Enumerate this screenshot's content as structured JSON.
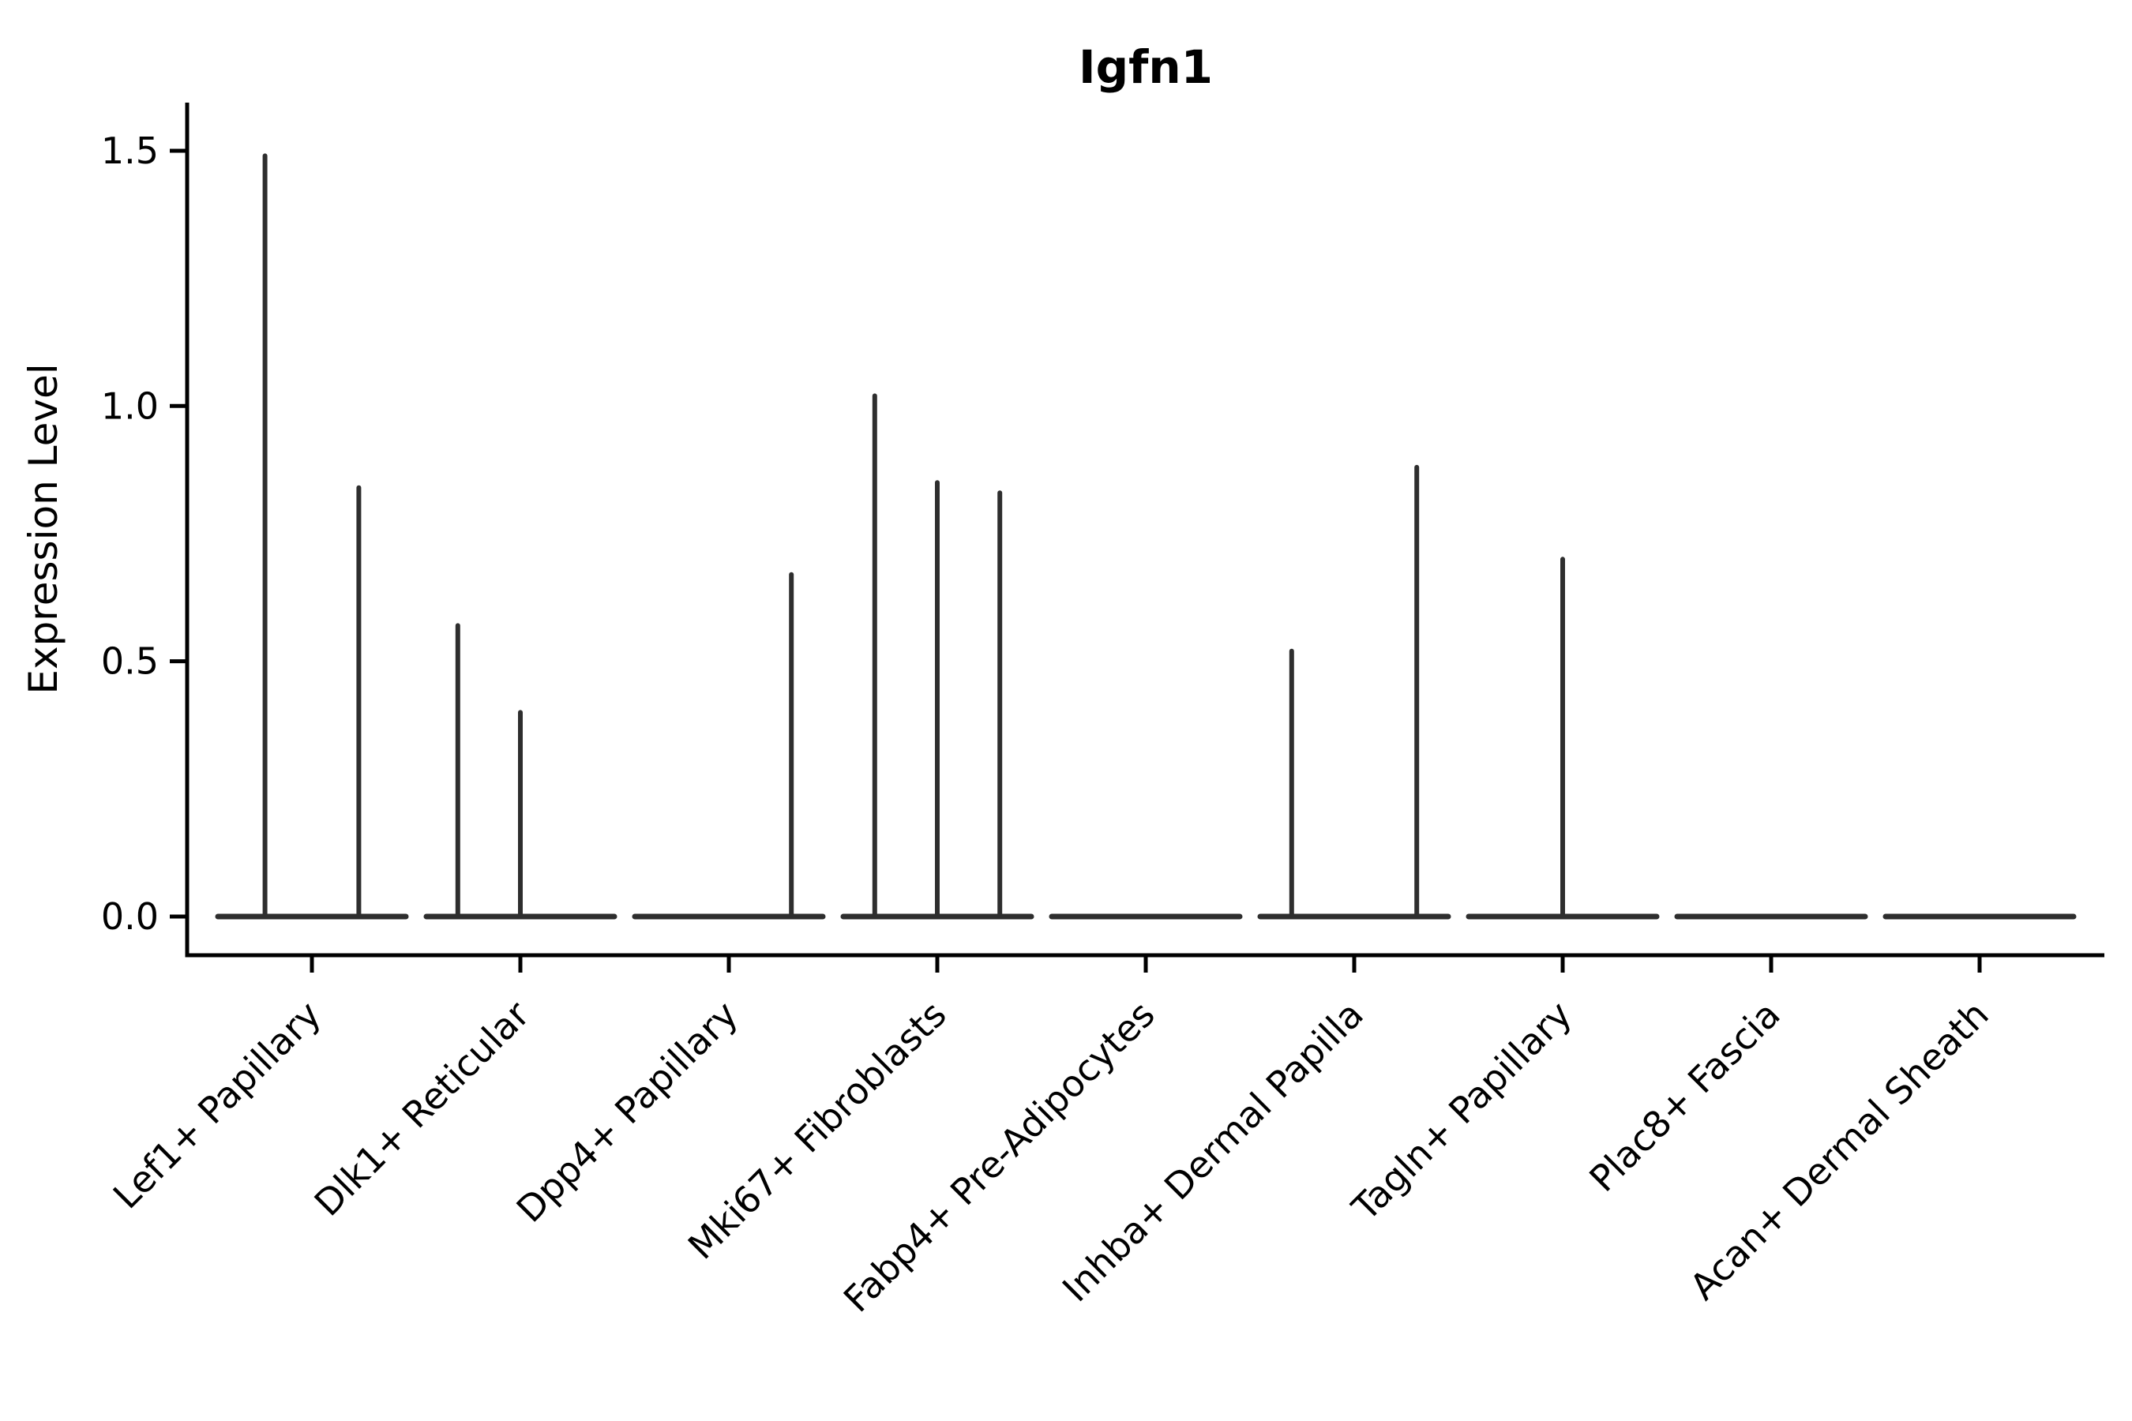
{
  "figure": {
    "background": "#ffffff"
  },
  "chart_data": {
    "type": "violin",
    "title": "Igfn1",
    "ylabel": "Expression Level",
    "xlabel": "",
    "ytick_labels": [
      "0.0",
      "0.5",
      "1.0",
      "1.5"
    ],
    "ytick_values": [
      0.0,
      0.5,
      1.0,
      1.5
    ],
    "ylim": [
      -0.076,
      1.595
    ],
    "grid": false,
    "legend": "none",
    "categories": [
      "Lef1+ Papillary",
      "Dlk1+ Reticular",
      "Dpp4+ Papillary",
      "Mki67+ Fibroblasts",
      "Fabp4+ Pre-Adipocytes",
      "Inhba+ Dermal Papilla",
      "Tagln+ Papillary",
      "Plac8+ Fascia",
      "Acan+ Dermal Sheath"
    ],
    "violins": [
      {
        "category": "Lef1+ Papillary",
        "baseline_value": 0.0,
        "spikes": [
          {
            "offset": -0.225,
            "value": 1.49
          },
          {
            "offset": 0.225,
            "value": 0.84
          }
        ]
      },
      {
        "category": "Dlk1+ Reticular",
        "baseline_value": 0.0,
        "spikes": [
          {
            "offset": -0.3,
            "value": 0.57
          },
          {
            "offset": 0.0,
            "value": 0.4
          }
        ]
      },
      {
        "category": "Dpp4+ Papillary",
        "baseline_value": 0.0,
        "spikes": [
          {
            "offset": 0.3,
            "value": 0.67
          }
        ]
      },
      {
        "category": "Mki67+ Fibroblasts",
        "baseline_value": 0.0,
        "spikes": [
          {
            "offset": -0.3,
            "value": 1.02
          },
          {
            "offset": 0.0,
            "value": 0.85
          },
          {
            "offset": 0.3,
            "value": 0.83
          }
        ]
      },
      {
        "category": "Fabp4+ Pre-Adipocytes",
        "baseline_value": 0.0,
        "spikes": []
      },
      {
        "category": "Inhba+ Dermal Papilla",
        "baseline_value": 0.0,
        "spikes": [
          {
            "offset": -0.3,
            "value": 0.52
          },
          {
            "offset": 0.3,
            "value": 0.88
          }
        ]
      },
      {
        "category": "Tagln+ Papillary",
        "baseline_value": 0.0,
        "spikes": [
          {
            "offset": 0.0,
            "value": 0.7
          }
        ]
      },
      {
        "category": "Plac8+ Fascia",
        "baseline_value": 0.0,
        "spikes": []
      },
      {
        "category": "Acan+ Dermal Sheath",
        "baseline_value": 0.0,
        "spikes": []
      }
    ],
    "colors": {
      "violin_stroke": "#2e2e2e",
      "axis": "#000000",
      "text": "#000000",
      "background": "#ffffff"
    }
  }
}
